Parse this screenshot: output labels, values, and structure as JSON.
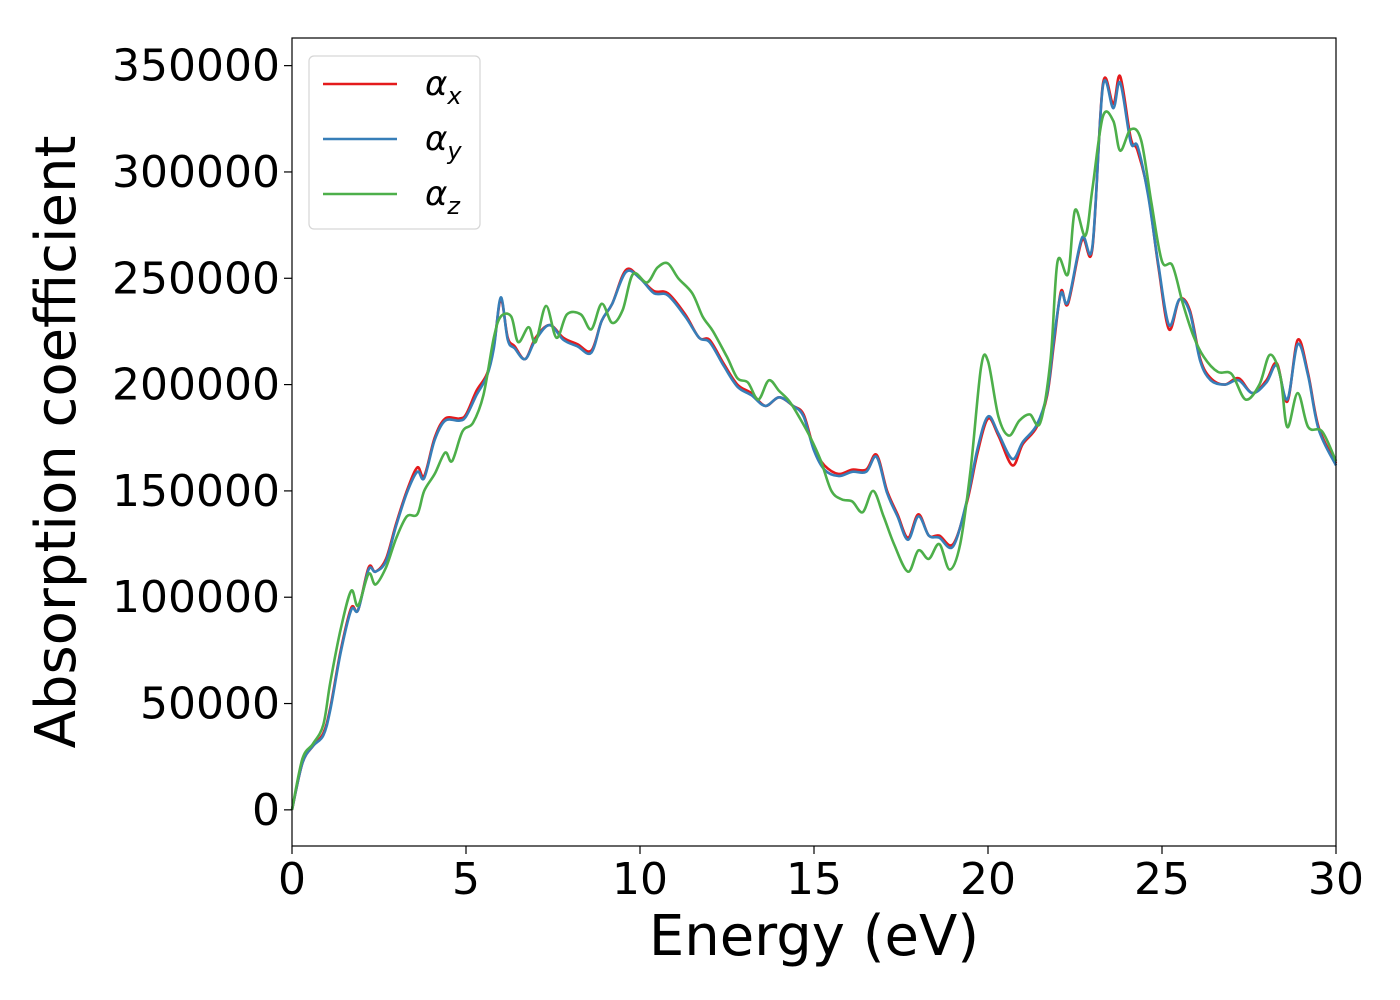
{
  "chart_data": {
    "type": "line",
    "xlabel": "Energy (eV)",
    "ylabel": "Absorption coefficient",
    "xlim": [
      0,
      30
    ],
    "ylim": [
      -17000,
      363000
    ],
    "x_ticks": [
      0,
      5,
      10,
      15,
      20,
      25,
      30
    ],
    "y_ticks": [
      0,
      50000,
      100000,
      150000,
      200000,
      250000,
      300000,
      350000
    ],
    "grid": false,
    "legend_position": "top-left",
    "series": [
      {
        "name": "αx",
        "symbol": "α",
        "subscript": "x",
        "color": "#e41a1c",
        "points": [
          [
            0,
            0
          ],
          [
            0.3,
            22000
          ],
          [
            0.6,
            30000
          ],
          [
            0.9,
            36000
          ],
          [
            1.1,
            48000
          ],
          [
            1.4,
            75000
          ],
          [
            1.7,
            95000
          ],
          [
            1.9,
            94000
          ],
          [
            2.2,
            114000
          ],
          [
            2.4,
            112000
          ],
          [
            2.7,
            118000
          ],
          [
            3.0,
            135000
          ],
          [
            3.3,
            150000
          ],
          [
            3.6,
            161000
          ],
          [
            3.8,
            157000
          ],
          [
            4.1,
            175000
          ],
          [
            4.4,
            184000
          ],
          [
            4.8,
            184000
          ],
          [
            5.0,
            186000
          ],
          [
            5.3,
            197000
          ],
          [
            5.6,
            205000
          ],
          [
            5.8,
            218000
          ],
          [
            6.0,
            240000
          ],
          [
            6.2,
            222000
          ],
          [
            6.4,
            218000
          ],
          [
            6.7,
            212000
          ],
          [
            7.0,
            222000
          ],
          [
            7.4,
            228000
          ],
          [
            7.8,
            222000
          ],
          [
            8.2,
            219000
          ],
          [
            8.6,
            216000
          ],
          [
            8.9,
            230000
          ],
          [
            9.2,
            238000
          ],
          [
            9.6,
            254000
          ],
          [
            10.0,
            250000
          ],
          [
            10.4,
            244000
          ],
          [
            10.8,
            243000
          ],
          [
            11.3,
            233000
          ],
          [
            11.7,
            222000
          ],
          [
            12.0,
            221000
          ],
          [
            12.4,
            210000
          ],
          [
            12.8,
            200000
          ],
          [
            13.2,
            196000
          ],
          [
            13.6,
            190000
          ],
          [
            14.0,
            194000
          ],
          [
            14.4,
            190000
          ],
          [
            14.7,
            186000
          ],
          [
            15.0,
            170000
          ],
          [
            15.3,
            162000
          ],
          [
            15.7,
            158000
          ],
          [
            16.1,
            160000
          ],
          [
            16.5,
            160000
          ],
          [
            16.8,
            167000
          ],
          [
            17.1,
            150000
          ],
          [
            17.4,
            139000
          ],
          [
            17.7,
            128000
          ],
          [
            18.0,
            139000
          ],
          [
            18.3,
            129000
          ],
          [
            18.6,
            129000
          ],
          [
            19.0,
            125000
          ],
          [
            19.4,
            145000
          ],
          [
            19.7,
            168000
          ],
          [
            20.0,
            184000
          ],
          [
            20.3,
            176000
          ],
          [
            20.7,
            162000
          ],
          [
            21.0,
            172000
          ],
          [
            21.4,
            180000
          ],
          [
            21.7,
            195000
          ],
          [
            21.9,
            220000
          ],
          [
            22.1,
            244000
          ],
          [
            22.3,
            238000
          ],
          [
            22.7,
            268000
          ],
          [
            23.0,
            264000
          ],
          [
            23.3,
            341000
          ],
          [
            23.6,
            332000
          ],
          [
            23.8,
            345000
          ],
          [
            24.1,
            316000
          ],
          [
            24.3,
            310000
          ],
          [
            24.6,
            290000
          ],
          [
            24.9,
            255000
          ],
          [
            25.2,
            226000
          ],
          [
            25.5,
            240000
          ],
          [
            25.8,
            235000
          ],
          [
            26.1,
            212000
          ],
          [
            26.4,
            203000
          ],
          [
            26.8,
            200000
          ],
          [
            27.2,
            203000
          ],
          [
            27.6,
            196000
          ],
          [
            28.0,
            202000
          ],
          [
            28.3,
            210000
          ],
          [
            28.6,
            192000
          ],
          [
            28.9,
            221000
          ],
          [
            29.2,
            205000
          ],
          [
            29.5,
            180000
          ],
          [
            30.0,
            163000
          ]
        ]
      },
      {
        "name": "αy",
        "symbol": "α",
        "subscript": "y",
        "color": "#377eb8",
        "points": [
          [
            0,
            0
          ],
          [
            0.3,
            22000
          ],
          [
            0.6,
            30000
          ],
          [
            0.9,
            35000
          ],
          [
            1.1,
            47000
          ],
          [
            1.4,
            74000
          ],
          [
            1.7,
            94000
          ],
          [
            1.9,
            94000
          ],
          [
            2.2,
            113000
          ],
          [
            2.4,
            112000
          ],
          [
            2.7,
            117000
          ],
          [
            3.0,
            134000
          ],
          [
            3.3,
            149000
          ],
          [
            3.6,
            159000
          ],
          [
            3.8,
            156000
          ],
          [
            4.1,
            174000
          ],
          [
            4.4,
            183000
          ],
          [
            4.8,
            183000
          ],
          [
            5.0,
            185000
          ],
          [
            5.3,
            195000
          ],
          [
            5.6,
            204000
          ],
          [
            5.8,
            217000
          ],
          [
            6.0,
            241000
          ],
          [
            6.2,
            221000
          ],
          [
            6.4,
            217000
          ],
          [
            6.7,
            212000
          ],
          [
            7.0,
            221000
          ],
          [
            7.4,
            228000
          ],
          [
            7.8,
            221000
          ],
          [
            8.2,
            218000
          ],
          [
            8.6,
            215000
          ],
          [
            8.9,
            230000
          ],
          [
            9.2,
            238000
          ],
          [
            9.6,
            253000
          ],
          [
            10.0,
            250000
          ],
          [
            10.4,
            243000
          ],
          [
            10.8,
            242000
          ],
          [
            11.3,
            232000
          ],
          [
            11.7,
            222000
          ],
          [
            12.0,
            220000
          ],
          [
            12.4,
            209000
          ],
          [
            12.8,
            199000
          ],
          [
            13.2,
            195000
          ],
          [
            13.6,
            190000
          ],
          [
            14.0,
            194000
          ],
          [
            14.4,
            190000
          ],
          [
            14.7,
            185000
          ],
          [
            15.0,
            169000
          ],
          [
            15.3,
            160000
          ],
          [
            15.7,
            157000
          ],
          [
            16.1,
            159000
          ],
          [
            16.5,
            159000
          ],
          [
            16.8,
            166000
          ],
          [
            17.1,
            149000
          ],
          [
            17.4,
            138000
          ],
          [
            17.7,
            127000
          ],
          [
            18.0,
            138000
          ],
          [
            18.3,
            129000
          ],
          [
            18.6,
            128000
          ],
          [
            19.0,
            124000
          ],
          [
            19.4,
            146000
          ],
          [
            19.7,
            170000
          ],
          [
            20.0,
            185000
          ],
          [
            20.3,
            177000
          ],
          [
            20.7,
            165000
          ],
          [
            21.0,
            173000
          ],
          [
            21.4,
            181000
          ],
          [
            21.7,
            196000
          ],
          [
            21.9,
            222000
          ],
          [
            22.1,
            243000
          ],
          [
            22.3,
            239000
          ],
          [
            22.7,
            269000
          ],
          [
            23.0,
            265000
          ],
          [
            23.3,
            340000
          ],
          [
            23.6,
            330000
          ],
          [
            23.8,
            342000
          ],
          [
            24.1,
            314000
          ],
          [
            24.3,
            312000
          ],
          [
            24.6,
            289000
          ],
          [
            24.9,
            256000
          ],
          [
            25.2,
            228000
          ],
          [
            25.5,
            240000
          ],
          [
            25.8,
            234000
          ],
          [
            26.1,
            211000
          ],
          [
            26.4,
            202000
          ],
          [
            26.8,
            200000
          ],
          [
            27.2,
            202000
          ],
          [
            27.6,
            196000
          ],
          [
            28.0,
            201000
          ],
          [
            28.3,
            209000
          ],
          [
            28.6,
            193000
          ],
          [
            28.9,
            219000
          ],
          [
            29.2,
            204000
          ],
          [
            29.5,
            179000
          ],
          [
            30.0,
            162000
          ]
        ]
      },
      {
        "name": "αz",
        "symbol": "α",
        "subscript": "z",
        "color": "#4daf4a",
        "points": [
          [
            0,
            0
          ],
          [
            0.3,
            24000
          ],
          [
            0.6,
            31000
          ],
          [
            0.9,
            40000
          ],
          [
            1.1,
            60000
          ],
          [
            1.4,
            85000
          ],
          [
            1.7,
            103000
          ],
          [
            1.9,
            96000
          ],
          [
            2.2,
            111000
          ],
          [
            2.4,
            106000
          ],
          [
            2.7,
            114000
          ],
          [
            3.0,
            128000
          ],
          [
            3.3,
            138000
          ],
          [
            3.6,
            139000
          ],
          [
            3.8,
            150000
          ],
          [
            4.1,
            158000
          ],
          [
            4.4,
            168000
          ],
          [
            4.6,
            164000
          ],
          [
            4.9,
            178000
          ],
          [
            5.2,
            182000
          ],
          [
            5.5,
            195000
          ],
          [
            5.8,
            222000
          ],
          [
            6.0,
            232000
          ],
          [
            6.3,
            232000
          ],
          [
            6.5,
            220000
          ],
          [
            6.8,
            227000
          ],
          [
            7.0,
            220000
          ],
          [
            7.3,
            237000
          ],
          [
            7.6,
            222000
          ],
          [
            7.9,
            233000
          ],
          [
            8.3,
            233000
          ],
          [
            8.6,
            226000
          ],
          [
            8.9,
            238000
          ],
          [
            9.2,
            229000
          ],
          [
            9.5,
            235000
          ],
          [
            9.8,
            252000
          ],
          [
            10.2,
            248000
          ],
          [
            10.5,
            255000
          ],
          [
            10.8,
            257000
          ],
          [
            11.1,
            250000
          ],
          [
            11.5,
            243000
          ],
          [
            11.8,
            232000
          ],
          [
            12.1,
            225000
          ],
          [
            12.5,
            213000
          ],
          [
            12.8,
            203000
          ],
          [
            13.1,
            201000
          ],
          [
            13.4,
            193000
          ],
          [
            13.7,
            202000
          ],
          [
            14.0,
            197000
          ],
          [
            14.3,
            192000
          ],
          [
            14.6,
            184000
          ],
          [
            14.9,
            175000
          ],
          [
            15.2,
            164000
          ],
          [
            15.5,
            150000
          ],
          [
            15.8,
            146000
          ],
          [
            16.1,
            145000
          ],
          [
            16.4,
            140000
          ],
          [
            16.7,
            150000
          ],
          [
            17.0,
            138000
          ],
          [
            17.3,
            125000
          ],
          [
            17.7,
            112000
          ],
          [
            18.0,
            122000
          ],
          [
            18.3,
            118000
          ],
          [
            18.6,
            125000
          ],
          [
            18.9,
            113000
          ],
          [
            19.2,
            125000
          ],
          [
            19.5,
            160000
          ],
          [
            19.8,
            208000
          ],
          [
            20.0,
            211000
          ],
          [
            20.3,
            185000
          ],
          [
            20.6,
            176000
          ],
          [
            20.9,
            183000
          ],
          [
            21.2,
            186000
          ],
          [
            21.5,
            182000
          ],
          [
            21.8,
            212000
          ],
          [
            22.0,
            258000
          ],
          [
            22.3,
            252000
          ],
          [
            22.5,
            282000
          ],
          [
            22.8,
            270000
          ],
          [
            23.0,
            292000
          ],
          [
            23.3,
            326000
          ],
          [
            23.6,
            324000
          ],
          [
            23.8,
            310000
          ],
          [
            24.1,
            320000
          ],
          [
            24.4,
            315000
          ],
          [
            24.7,
            285000
          ],
          [
            25.0,
            258000
          ],
          [
            25.3,
            256000
          ],
          [
            25.6,
            238000
          ],
          [
            25.9,
            223000
          ],
          [
            26.2,
            213000
          ],
          [
            26.6,
            206000
          ],
          [
            27.0,
            205000
          ],
          [
            27.4,
            193000
          ],
          [
            27.8,
            200000
          ],
          [
            28.1,
            214000
          ],
          [
            28.4,
            204000
          ],
          [
            28.6,
            180000
          ],
          [
            28.9,
            196000
          ],
          [
            29.2,
            180000
          ],
          [
            29.6,
            178000
          ],
          [
            30.0,
            164000
          ]
        ]
      }
    ]
  }
}
